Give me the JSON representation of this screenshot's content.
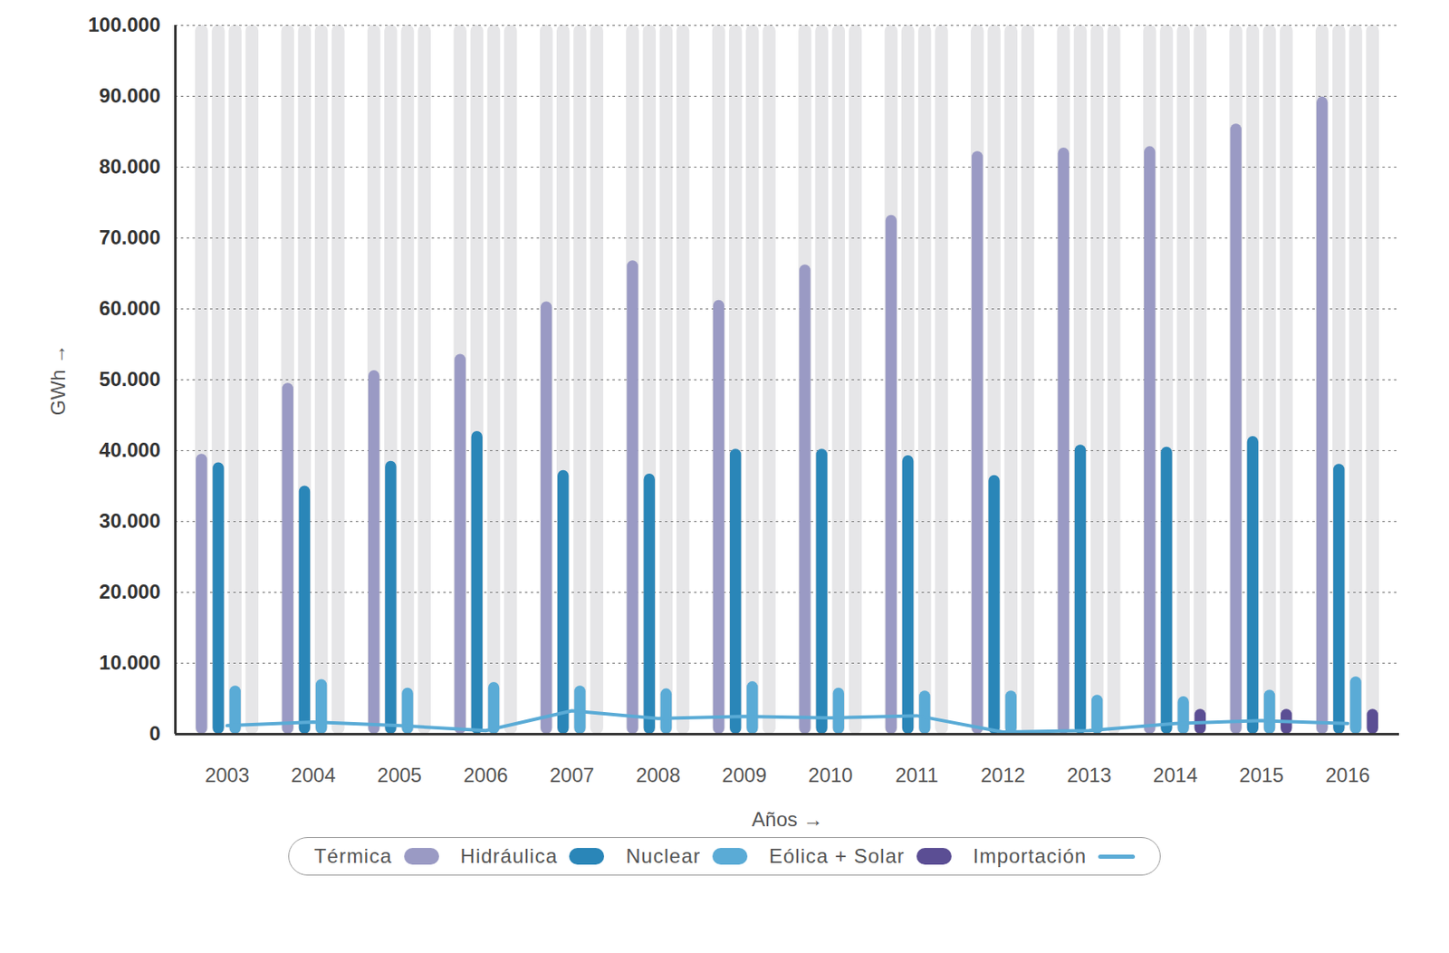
{
  "chart_data": {
    "type": "bar",
    "x_label": "Años",
    "y_label": "GWh",
    "categories": [
      "2003",
      "2004",
      "2005",
      "2006",
      "2007",
      "2008",
      "2009",
      "2010",
      "2011",
      "2012",
      "2013",
      "2014",
      "2015",
      "2016"
    ],
    "series": [
      {
        "name": "Térmica",
        "color": "#9a9ac4",
        "values": [
          39500,
          49500,
          51300,
          53600,
          61000,
          66800,
          61200,
          66200,
          73200,
          82200,
          82700,
          82900,
          86100,
          89900
        ]
      },
      {
        "name": "Hidráulica",
        "color": "#2a86b8",
        "values": [
          38300,
          35000,
          38500,
          42700,
          37200,
          36700,
          40200,
          40200,
          39300,
          36500,
          40800,
          40500,
          42000,
          38100
        ]
      },
      {
        "name": "Nuclear",
        "color": "#5aabd6",
        "values": [
          6800,
          7700,
          6500,
          7300,
          6800,
          6400,
          7400,
          6500,
          6100,
          6100,
          5500,
          5300,
          6200,
          8100
        ]
      },
      {
        "name": "Eólica + Solar",
        "color": "#5b4e94",
        "values": [
          null,
          null,
          null,
          null,
          null,
          null,
          null,
          null,
          null,
          null,
          null,
          3500,
          3500,
          3500
        ]
      },
      {
        "name": "Importación",
        "color": "#5aabd6",
        "type": "line",
        "values": [
          1200,
          1700,
          1200,
          500,
          3300,
          2200,
          2500,
          2300,
          2600,
          300,
          500,
          1500,
          1900,
          1500
        ]
      }
    ],
    "ylim": [
      0,
      100000
    ],
    "yticks": [
      0,
      {
        "value": 10000,
        "label": "10.000"
      },
      {
        "value": 20000,
        "label": "20.000"
      },
      {
        "value": 30000,
        "label": "30.000"
      },
      {
        "value": 40000,
        "label": "40.000"
      },
      {
        "value": 50000,
        "label": "50.000"
      },
      {
        "value": 60000,
        "label": "60.000"
      },
      {
        "value": 70000,
        "label": "70.000"
      },
      {
        "value": 80000,
        "label": "80.000"
      },
      {
        "value": 90000,
        "label": "90.000"
      },
      {
        "value": 100000,
        "label": "100.000"
      }
    ],
    "grid": true,
    "legend": "bottom"
  }
}
